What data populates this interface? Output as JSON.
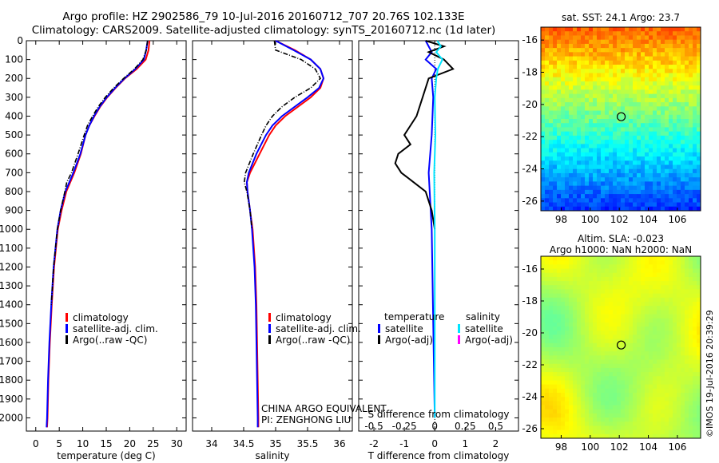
{
  "header": {
    "line1": "Argo profile: HZ 2902586_79 10-Jul-2016 20160712_707 20.76S 102.133E",
    "line2": "Climatology: CARS2009. Satellite-adjusted climatology: synTS_20160712.nc (1d later)"
  },
  "colors": {
    "clim": "#ff0000",
    "sat": "#0000ff",
    "argo": "#000000",
    "sat_s": "#00e5ff",
    "argo_s": "#ff00ff"
  },
  "legend_profile": {
    "clim": "climatology",
    "sat": "satellite-adj. clim.",
    "argo": "Argo(..raw -QC)"
  },
  "legend_diff": {
    "head_t": "temperature",
    "head_s": "salinity",
    "sat": "satellite",
    "argo": "Argo(-adj)"
  },
  "credit": {
    "line1": "CHINA ARGO EQUIVALENT",
    "line2": "PI: ZENGHONG LIU"
  },
  "maps": {
    "sst_title": "sat. SST: 24.1 Argo: 23.7",
    "sla_title1": "Altim. SLA: -0.023",
    "sla_title2": "Argo h1000: NaN h2000: NaN",
    "lon_ticks": [
      "98",
      "100",
      "102",
      "104",
      "106"
    ],
    "lat_ticks": [
      "-16",
      "-18",
      "-20",
      "-22",
      "-24",
      "-26"
    ],
    "float_lon": 102.133,
    "float_lat": -20.76
  },
  "stamp": "©IMOS 19-Jul-2016 20:39:29",
  "chart_data": [
    {
      "type": "line",
      "xlabel": "temperature (deg C)",
      "ylim": [
        2070,
        0
      ],
      "xlim": [
        -2,
        32
      ],
      "xticks": [
        "0",
        "5",
        "10",
        "15",
        "20",
        "25",
        "30"
      ],
      "yticks": [
        "0",
        "100",
        "200",
        "300",
        "400",
        "500",
        "600",
        "700",
        "800",
        "900",
        "1000",
        "1100",
        "1200",
        "1300",
        "1400",
        "1500",
        "1600",
        "1700",
        "1800",
        "1900",
        "2000"
      ],
      "series": [
        {
          "name": "climatology",
          "depth": [
            0,
            50,
            100,
            150,
            200,
            250,
            300,
            350,
            400,
            450,
            500,
            600,
            700,
            800,
            900,
            1000,
            1200,
            1400,
            1600,
            1800,
            2000,
            2050
          ],
          "values": [
            24.2,
            24.0,
            23.4,
            21.5,
            19.0,
            17.0,
            15.2,
            13.7,
            12.5,
            11.4,
            10.6,
            9.6,
            8.2,
            6.5,
            5.5,
            4.7,
            3.9,
            3.4,
            3.0,
            2.7,
            2.5,
            2.4
          ]
        },
        {
          "name": "satellite-adj. clim.",
          "depth": [
            0,
            50,
            100,
            150,
            200,
            250,
            300,
            350,
            400,
            450,
            500,
            600,
            700,
            800,
            900,
            1000,
            1200,
            1400,
            1600,
            1800,
            2000,
            2050
          ],
          "values": [
            23.8,
            23.5,
            23.0,
            21.2,
            18.9,
            16.9,
            15.1,
            13.6,
            12.4,
            11.4,
            10.6,
            9.5,
            8.0,
            6.3,
            5.3,
            4.6,
            3.8,
            3.3,
            2.9,
            2.6,
            2.4,
            2.3
          ]
        },
        {
          "name": "Argo(..raw -QC)",
          "depth": [
            0,
            50,
            100,
            150,
            200,
            250,
            300,
            350,
            400,
            450,
            500,
            600,
            700,
            750,
            800,
            900,
            1000,
            1200,
            1400
          ],
          "values": [
            23.8,
            23.5,
            22.8,
            21.0,
            18.7,
            16.6,
            14.8,
            13.3,
            12.1,
            11.0,
            10.3,
            9.0,
            7.6,
            6.6,
            6.2,
            5.3,
            4.6,
            3.8,
            3.3
          ]
        }
      ]
    },
    {
      "type": "line",
      "xlabel": "salinity",
      "ylim": [
        2070,
        0
      ],
      "xlim": [
        33.7,
        36.2
      ],
      "xticks": [
        "34",
        "34.5",
        "35",
        "35.5",
        "36"
      ],
      "series": [
        {
          "name": "climatology",
          "depth": [
            0,
            50,
            100,
            150,
            200,
            250,
            300,
            350,
            400,
            450,
            500,
            600,
            700,
            750,
            800,
            900,
            1000,
            1200,
            1400,
            1600,
            1800,
            2000,
            2050
          ],
          "values": [
            35.0,
            35.3,
            35.55,
            35.7,
            35.75,
            35.7,
            35.55,
            35.35,
            35.15,
            35.0,
            34.9,
            34.75,
            34.6,
            34.55,
            34.56,
            34.6,
            34.64,
            34.68,
            34.7,
            34.71,
            34.72,
            34.73,
            34.73
          ]
        },
        {
          "name": "satellite-adj. clim.",
          "depth": [
            0,
            50,
            100,
            150,
            200,
            250,
            300,
            350,
            400,
            450,
            500,
            600,
            700,
            750,
            800,
            900,
            1000,
            1200,
            1400,
            1600,
            1800,
            2000,
            2050
          ],
          "values": [
            35.0,
            35.28,
            35.55,
            35.7,
            35.75,
            35.68,
            35.5,
            35.3,
            35.1,
            34.95,
            34.85,
            34.7,
            34.58,
            34.55,
            34.56,
            34.6,
            34.63,
            34.67,
            34.69,
            34.7,
            34.71,
            34.72,
            34.72
          ]
        },
        {
          "name": "Argo(..raw -QC)",
          "depth": [
            0,
            50,
            100,
            150,
            200,
            250,
            300,
            350,
            400,
            450,
            500,
            600,
            700,
            750,
            800,
            900,
            1000
          ],
          "values": [
            34.98,
            35.0,
            35.4,
            35.62,
            35.7,
            35.55,
            35.3,
            35.1,
            34.95,
            34.85,
            34.78,
            34.65,
            34.53,
            34.51,
            34.55,
            34.6,
            34.63
          ]
        }
      ]
    },
    {
      "type": "line",
      "xlabel": "T difference from climatology",
      "title": "S difference from climatology",
      "ylim": [
        2070,
        0
      ],
      "xlim": [
        -2.5,
        2.75
      ],
      "xticks": [
        "-2",
        "-1",
        "0",
        "1",
        "2"
      ],
      "s_xticks": [
        "-0.5",
        "-0.25",
        "0",
        "0.25",
        "0.5"
      ],
      "series": [
        {
          "name": "temperature satellite",
          "depth": [
            0,
            30,
            60,
            100,
            150,
            200,
            300,
            500,
            700,
            1000,
            1500,
            2000
          ],
          "values": [
            -0.3,
            -0.2,
            -0.1,
            -0.3,
            0.05,
            -0.1,
            -0.05,
            -0.1,
            -0.2,
            -0.1,
            -0.05,
            0.0
          ]
        },
        {
          "name": "temperature Argo(-adj)",
          "depth": [
            0,
            30,
            60,
            100,
            150,
            200,
            300,
            400,
            500,
            550,
            600,
            650,
            700,
            750,
            800,
            850,
            900,
            1000
          ],
          "values": [
            -0.3,
            0.3,
            -0.2,
            0.3,
            0.6,
            -0.2,
            -0.4,
            -0.6,
            -1.0,
            -0.8,
            -1.2,
            -1.3,
            -1.1,
            -0.7,
            -0.3,
            -0.2,
            -0.1,
            0.0
          ]
        },
        {
          "name": "salinity satellite",
          "depth": [
            0,
            30,
            60,
            100,
            150,
            200,
            300,
            500,
            700,
            1000,
            1500,
            2000
          ],
          "values": [
            0.08,
            0.2,
            0.05,
            0.25,
            0.1,
            0.05,
            0.0,
            0.02,
            -0.02,
            0.0,
            0.0,
            0.0
          ]
        },
        {
          "name": "salinity Argo(-adj)",
          "depth": [],
          "values": []
        }
      ]
    }
  ]
}
